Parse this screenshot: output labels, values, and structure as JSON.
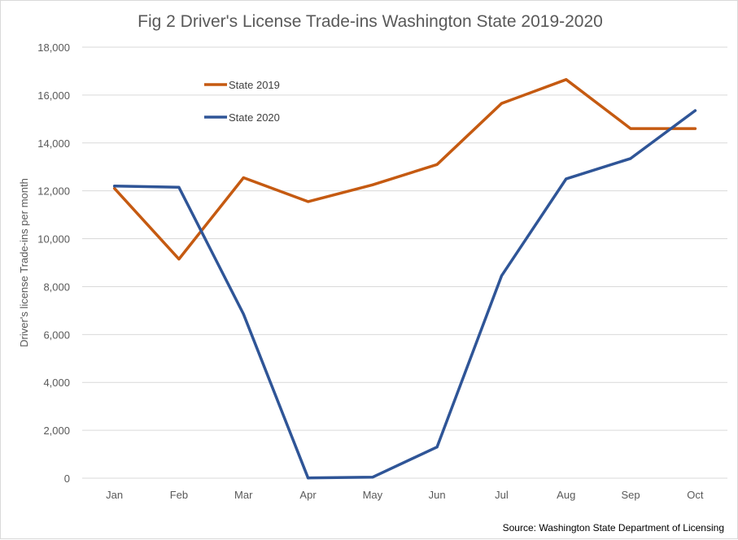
{
  "chart_data": {
    "type": "line",
    "title": "Fig 2 Driver's License Trade-ins Washington State 2019-2020",
    "ylabel": "Driver's license Trade-ins per month",
    "xlabel": "",
    "categories": [
      "Jan",
      "Feb",
      "Mar",
      "Apr",
      "May",
      "Jun",
      "Jul",
      "Aug",
      "Sep",
      "Oct"
    ],
    "ylim": [
      0,
      18000
    ],
    "yticks": [
      "0",
      "2,000",
      "4,000",
      "6,000",
      "8,000",
      "10,000",
      "12,000",
      "14,000",
      "16,000",
      "18,000"
    ],
    "grid": true,
    "legend_position": "top-left",
    "series": [
      {
        "name": "State 2019",
        "color": "#c55a11",
        "values": [
          12100,
          9150,
          12550,
          11550,
          12250,
          13100,
          15650,
          16650,
          14600,
          14600
        ]
      },
      {
        "name": "State 2020",
        "color": "#2f5597",
        "values": [
          12200,
          12150,
          6850,
          10,
          40,
          1300,
          8450,
          12500,
          13350,
          15350
        ]
      }
    ],
    "source": "Source: Washington State Department of Licensing"
  }
}
